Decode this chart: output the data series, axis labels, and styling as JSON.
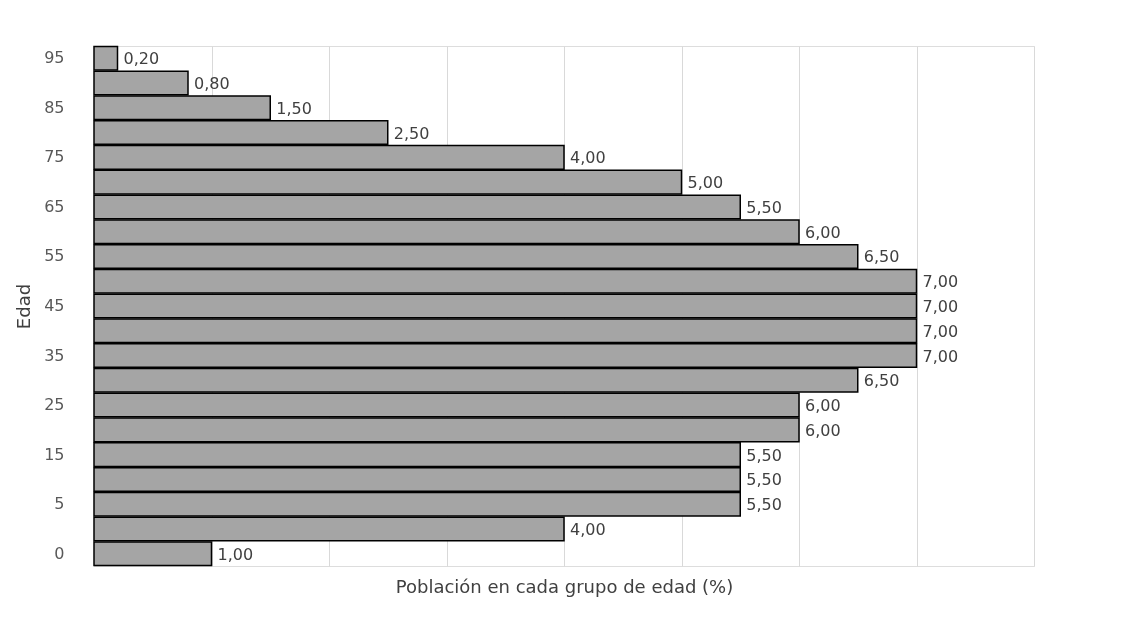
{
  "chart_data": {
    "type": "bar",
    "orientation": "horizontal",
    "xlabel": "Población en cada grupo de edad (%)",
    "ylabel": "Edad",
    "categories": [
      "95",
      null,
      "85",
      null,
      "75",
      null,
      "65",
      null,
      "55",
      null,
      "45",
      null,
      "35",
      null,
      "25",
      null,
      "15",
      null,
      "5",
      null,
      "0"
    ],
    "values": [
      0.2,
      0.8,
      1.5,
      2.5,
      4.0,
      5.0,
      5.5,
      6.0,
      6.5,
      7.0,
      7.0,
      7.0,
      7.0,
      6.5,
      6.0,
      6.0,
      5.5,
      5.5,
      5.5,
      4.0,
      1.0
    ],
    "value_labels": [
      "0,20",
      "0,80",
      "1,50",
      "2,50",
      "4,00",
      "5,00",
      "5,50",
      "6,00",
      "6,50",
      "7,00",
      "7,00",
      "7,00",
      "7,00",
      "6,50",
      "6,00",
      "6,00",
      "5,50",
      "5,50",
      "5,50",
      "4,00",
      "1,00"
    ],
    "color": "#a5a5a5",
    "xlim": [
      0,
      8
    ],
    "xticks": [
      {
        "value": 0,
        "label": null
      },
      {
        "value": 1,
        "label": null
      },
      {
        "value": 2,
        "label": null
      },
      {
        "value": 3,
        "label": null
      },
      {
        "value": 4,
        "label": null
      },
      {
        "value": 5,
        "label": null
      },
      {
        "value": 6,
        "label": null
      },
      {
        "value": 7,
        "label": null
      },
      {
        "value": 8,
        "label": null
      }
    ],
    "grid": "x",
    "tick_labels": "y"
  }
}
